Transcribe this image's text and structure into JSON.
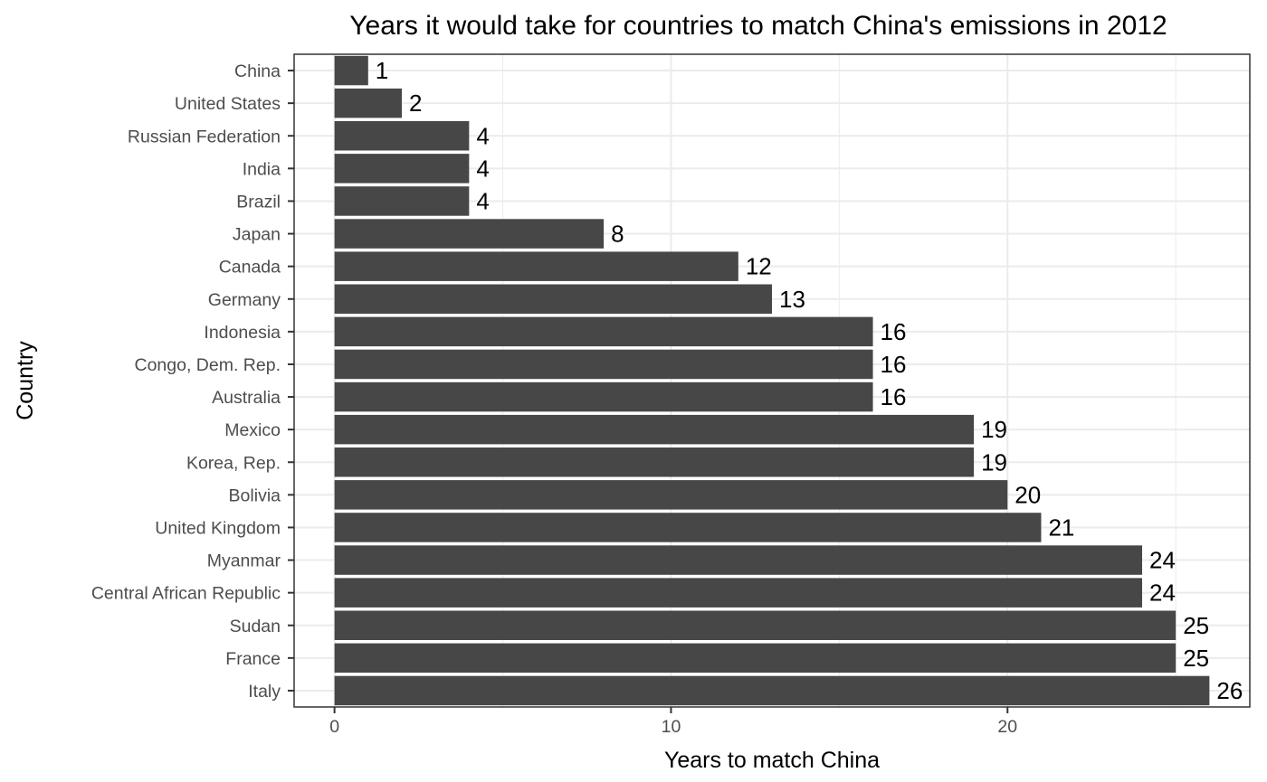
{
  "chart_data": {
    "type": "bar",
    "orientation": "horizontal",
    "title": "Years it would take for countries to match China's emissions in 2012",
    "xlabel": "Years to match China",
    "ylabel": "Country",
    "categories": [
      "China",
      "United States",
      "Russian Federation",
      "India",
      "Brazil",
      "Japan",
      "Canada",
      "Germany",
      "Indonesia",
      "Congo, Dem. Rep.",
      "Australia",
      "Mexico",
      "Korea, Rep.",
      "Bolivia",
      "United Kingdom",
      "Myanmar",
      "Central African Republic",
      "Sudan",
      "France",
      "Italy"
    ],
    "values": [
      1,
      2,
      4,
      4,
      4,
      8,
      12,
      13,
      16,
      16,
      16,
      19,
      19,
      20,
      21,
      24,
      24,
      25,
      25,
      26
    ],
    "data_labels": [
      "1",
      "2",
      "4",
      "4",
      "4",
      "8",
      "12",
      "13",
      "16",
      "16",
      "16",
      "19",
      "19",
      "20",
      "21",
      "24",
      "24",
      "25",
      "25",
      "26"
    ],
    "xlim": [
      -1.2,
      27.2
    ],
    "xticks": [
      0,
      10,
      20
    ],
    "xtick_labels": [
      "0",
      "10",
      "20"
    ],
    "grid": true,
    "bar_color": "#474747",
    "grid_color": "#ebebeb",
    "panel_border_color": "#333333",
    "legend": "none"
  }
}
